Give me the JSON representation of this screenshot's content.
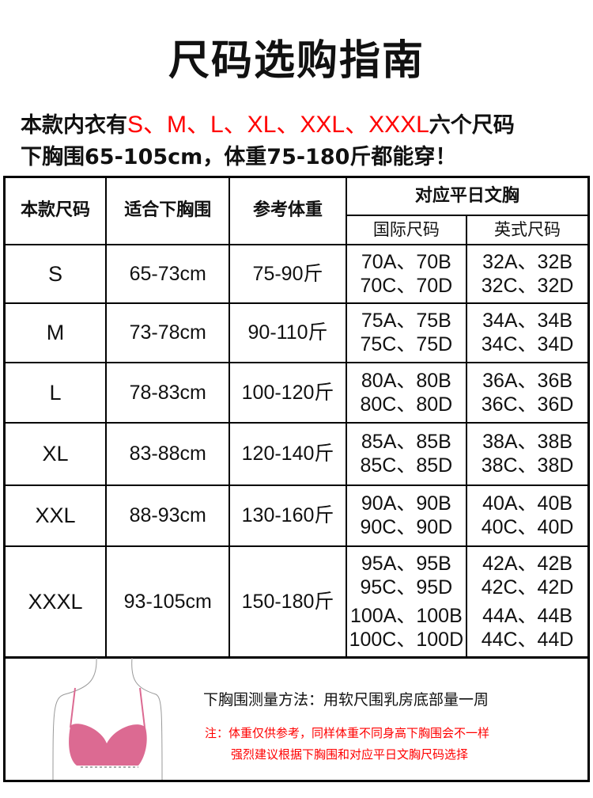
{
  "title": "尺码选购指南",
  "intro": {
    "line1_prefix": "本款内衣有",
    "line1_sizes": "S、M、L、XL、XXL、XXXL",
    "line1_suffix": "六个尺码",
    "line2": "下胸围65-105cm，体重75-180斤都能穿！"
  },
  "table": {
    "headers": {
      "size": "本款尺码",
      "underbust": "适合下胸围",
      "weight": "参考体重",
      "bra": "对应平日文胸",
      "intl": "国际尺码",
      "uk": "英式尺码"
    },
    "rows": [
      {
        "size": "S",
        "underbust": "65-73cm",
        "weight": "75-90斤",
        "intl": [
          "70A、70B",
          "70C、70D"
        ],
        "uk": [
          "32A、32B",
          "32C、32D"
        ]
      },
      {
        "size": "M",
        "underbust": "73-78cm",
        "weight": "90-110斤",
        "intl": [
          "75A、75B",
          "75C、75D"
        ],
        "uk": [
          "34A、34B",
          "34C、34D"
        ]
      },
      {
        "size": "L",
        "underbust": "78-83cm",
        "weight": "100-120斤",
        "intl": [
          "80A、80B",
          "80C、80D"
        ],
        "uk": [
          "36A、36B",
          "36C、36D"
        ]
      },
      {
        "size": "XL",
        "underbust": "83-88cm",
        "weight": "120-140斤",
        "intl": [
          "85A、85B",
          "85C、85D"
        ],
        "uk": [
          "38A、38B",
          "38C、38D"
        ]
      },
      {
        "size": "XXL",
        "underbust": "88-93cm",
        "weight": "130-160斤",
        "intl": [
          "90A、90B",
          "90C、90D"
        ],
        "uk": [
          "40A、40B",
          "40C、40D"
        ]
      },
      {
        "size": "XXXL",
        "underbust": "93-105cm",
        "weight": "150-180斤",
        "intl": [
          "95A、95B",
          "95C、95D",
          "100A、100B",
          "100C、100D"
        ],
        "uk": [
          "42A、42B",
          "42C、42D",
          "44A、44B",
          "44C、44D"
        ]
      }
    ]
  },
  "measure": {
    "method": "下胸围测量方法：用软尺围乳房底部量一周",
    "note1": "注：体重仅供参考，同样体重不同身高下胸围会不一样",
    "note2": "强烈建议根据下胸围和对应平日文胸尺码选择"
  },
  "colors": {
    "accent": "#ff0000",
    "bra": "#dc6a92"
  }
}
